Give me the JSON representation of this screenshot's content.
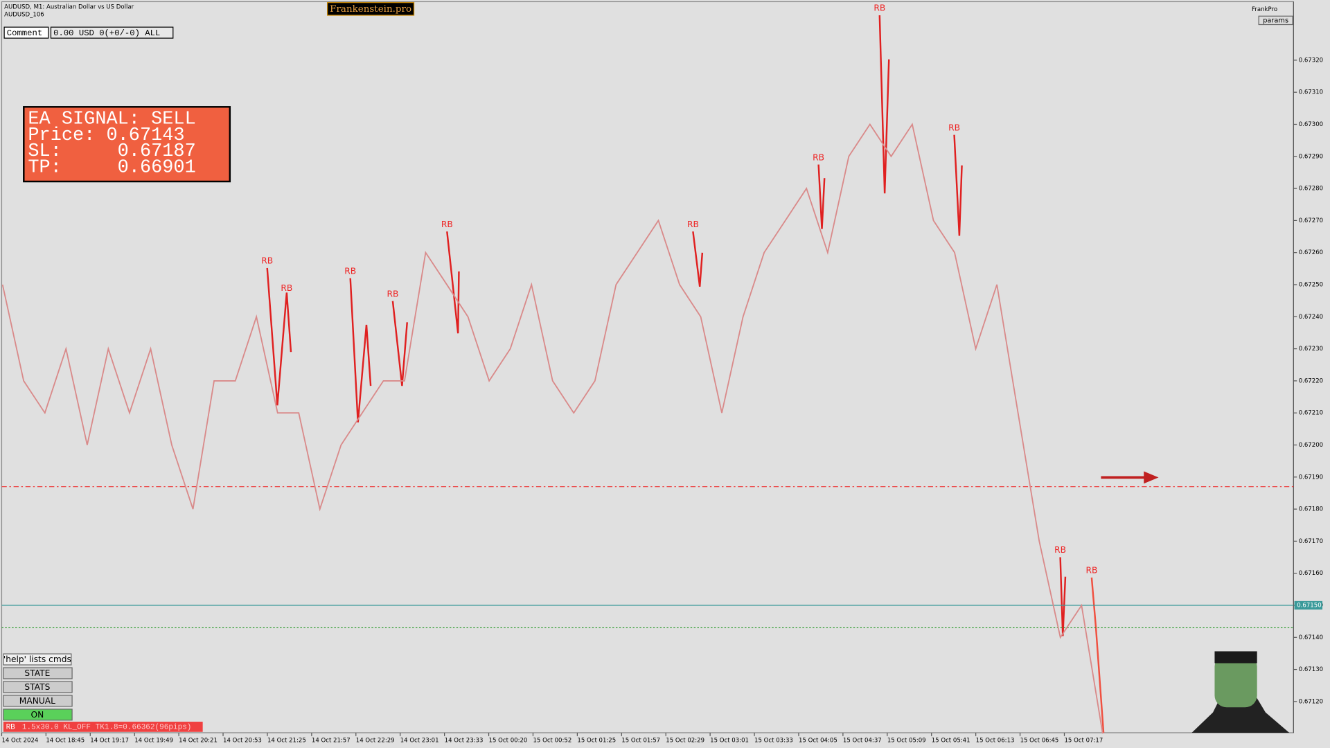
{
  "header": {
    "symbol": "AUDUSD, M1:  Australian Dollar vs US Dollar",
    "account": "AUDUSD_106",
    "brand": "Frankenstein.pro",
    "user": "FrankPro",
    "params": "params"
  },
  "comment": {
    "label": "Comment",
    "value": "0.00 USD 0(+0/-0) ALL"
  },
  "signal": {
    "title": "EA SIGNAL: SELL",
    "price": "Price: 0.67143",
    "sl": "SL:     0.67187",
    "tp": "TP:     0.66901"
  },
  "buttons": [
    "'help' lists cmds",
    "STATE",
    "STATS",
    "MANUAL",
    "ON"
  ],
  "status": {
    "tag": "RB",
    "text": "1.5x30.0 KL_OFF TK1.8=0.66362(96pips)"
  },
  "rb_labels": [
    "RB",
    "RB",
    "RB",
    "RB",
    "RB",
    "RB",
    "RB",
    "RB",
    "RB",
    "RB",
    "RB"
  ],
  "time_labels": [
    "14 Oct 2024",
    "14 Oct 18:45",
    "14 Oct 19:17",
    "14 Oct 19:49",
    "14 Oct 20:21",
    "14 Oct 20:53",
    "14 Oct 21:25",
    "14 Oct 21:57",
    "14 Oct 22:29",
    "14 Oct 23:01",
    "14 Oct 23:33",
    "15 Oct 00:20",
    "15 Oct 00:52",
    "15 Oct 01:25",
    "15 Oct 01:57",
    "15 Oct 02:29",
    "15 Oct 03:01",
    "15 Oct 03:33",
    "15 Oct 04:05",
    "15 Oct 04:37",
    "15 Oct 05:09",
    "15 Oct 05:41",
    "15 Oct 06:13",
    "15 Oct 06:45",
    "15 Oct 07:17"
  ],
  "chart_data": {
    "type": "line",
    "color": "#d98a8a",
    "values": [
      0.6725,
      0.6722,
      0.6721,
      0.6723,
      0.672,
      0.6723,
      0.6721,
      0.6723,
      0.672,
      0.6718,
      0.6722,
      0.6722,
      0.6724,
      0.6721,
      0.6721,
      0.6718,
      0.672,
      0.6721,
      0.6722,
      0.6722,
      0.6726,
      0.6725,
      0.6724,
      0.6722,
      0.6723,
      0.6725,
      0.6722,
      0.6721,
      0.6722,
      0.6725,
      0.6726,
      0.6727,
      0.6725,
      0.6724,
      0.6721,
      0.6724,
      0.6726,
      0.6727,
      0.6728,
      0.6726,
      0.6729,
      0.673,
      0.6729,
      0.673,
      0.6727,
      0.6726,
      0.6723,
      0.6725,
      0.6721,
      0.6717,
      0.6714,
      0.6715,
      0.6711
    ],
    "ylim": [
      0.6711,
      0.6733
    ],
    "yticks": [
      {
        "value": 0.6732,
        "label": "0.67320"
      },
      {
        "value": 0.6731,
        "label": "0.67310"
      },
      {
        "value": 0.673,
        "label": "0.67300"
      },
      {
        "value": 0.6729,
        "label": "0.67290"
      },
      {
        "value": 0.6728,
        "label": "0.67280"
      },
      {
        "value": 0.6727,
        "label": "0.67270"
      },
      {
        "value": 0.6726,
        "label": "0.67260"
      },
      {
        "value": 0.6725,
        "label": "0.67250"
      },
      {
        "value": 0.6724,
        "label": "0.67240"
      },
      {
        "value": 0.6723,
        "label": "0.67230"
      },
      {
        "value": 0.6722,
        "label": "0.67220"
      },
      {
        "value": 0.6721,
        "label": "0.67210"
      },
      {
        "value": 0.672,
        "label": "0.67200"
      },
      {
        "value": 0.6719,
        "label": "0.67190"
      },
      {
        "value": 0.6718,
        "label": "0.67180"
      },
      {
        "value": 0.6717,
        "label": "0.67170"
      },
      {
        "value": 0.6716,
        "label": "0.67160"
      },
      {
        "value": 0.6715,
        "label": "0.67150"
      },
      {
        "value": 0.6714,
        "label": "0.67140"
      },
      {
        "value": 0.6713,
        "label": "0.67130"
      },
      {
        "value": 0.6712,
        "label": "0.67120"
      }
    ],
    "hlines": [
      {
        "value": 0.67187,
        "color": "#e33"
      },
      {
        "value": 0.6715,
        "color": "#3a9a9a",
        "label": "0.67150"
      },
      {
        "value": 0.67143,
        "color": "#2a9a2a"
      }
    ]
  }
}
